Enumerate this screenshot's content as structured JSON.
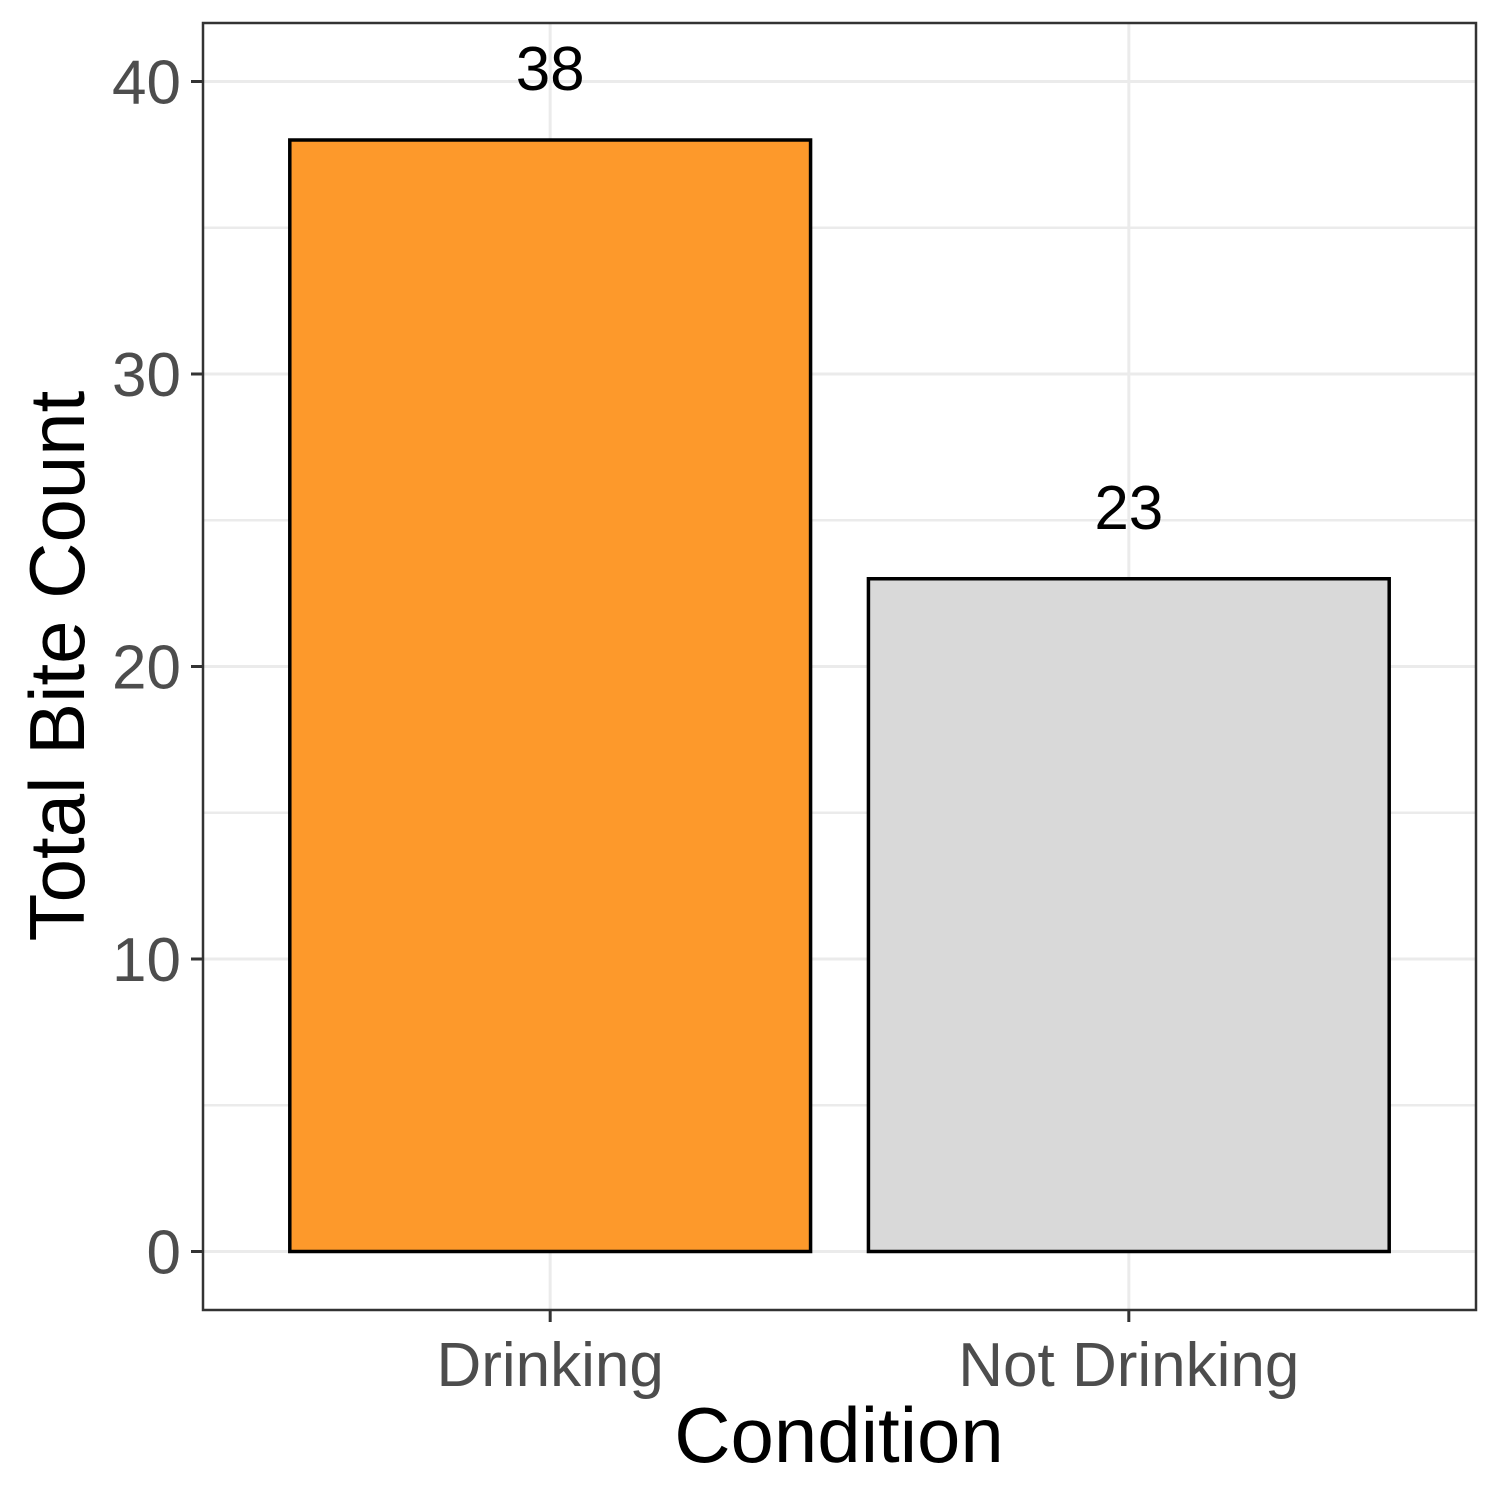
{
  "chart_data": {
    "type": "bar",
    "categories": [
      "Drinking",
      "Not Drinking"
    ],
    "values": [
      38,
      23
    ],
    "data_labels": [
      "38",
      "23"
    ],
    "bar_colors": [
      "#fd992b",
      "#d9d9d9"
    ],
    "outline_color": "#000000",
    "title": "",
    "xlabel": "Condition",
    "ylabel": "Total Bite Count",
    "ylim": [
      -2,
      42
    ],
    "yticks": [
      0,
      10,
      20,
      30,
      40
    ],
    "ytick_labels": [
      "0",
      "10",
      "20",
      "30",
      "40"
    ],
    "minor_yticks": [
      5,
      15,
      25,
      35
    ],
    "grid": true,
    "legend": "none",
    "theme": "bw"
  }
}
